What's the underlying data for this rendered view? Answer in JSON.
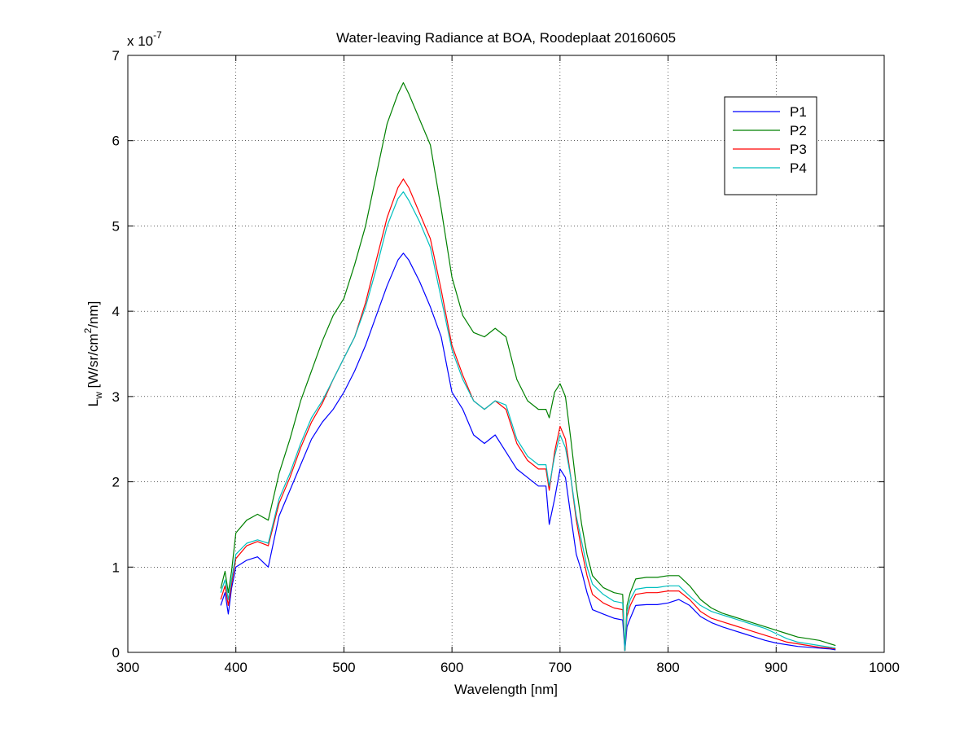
{
  "chart_data": {
    "type": "line",
    "title": "Water-leaving Radiance at BOA, Roodeplaat 20160605",
    "xlabel": "Wavelength [nm]",
    "ylabel": {
      "main": "L",
      "sub": "w",
      "unit_pre": " [W/sr/cm",
      "unit_sup": "2",
      "unit_post": "/nm]"
    },
    "y_multiplier": {
      "base": "x 10",
      "exponent": "-7"
    },
    "xlim": [
      300,
      1000
    ],
    "ylim": [
      0,
      7
    ],
    "xticks": [
      300,
      400,
      500,
      600,
      700,
      800,
      900,
      1000
    ],
    "yticks": [
      0,
      1,
      2,
      3,
      4,
      5,
      6,
      7
    ],
    "grid": true,
    "legend_position": "top-right",
    "series": [
      {
        "name": "P1",
        "color": "#0000ff",
        "x": [
          386,
          390,
          393,
          396,
          400,
          410,
          420,
          430,
          440,
          450,
          460,
          470,
          480,
          490,
          500,
          510,
          520,
          530,
          540,
          550,
          555,
          560,
          570,
          580,
          590,
          600,
          610,
          620,
          630,
          640,
          650,
          660,
          670,
          680,
          687,
          690,
          695,
          700,
          705,
          710,
          715,
          720,
          725,
          730,
          740,
          750,
          758,
          760,
          762,
          765,
          770,
          780,
          790,
          800,
          810,
          820,
          830,
          840,
          850,
          860,
          870,
          880,
          890,
          900,
          910,
          920,
          930,
          940,
          950,
          955
        ],
        "y": [
          0.55,
          0.7,
          0.45,
          0.75,
          1.0,
          1.08,
          1.12,
          1.0,
          1.6,
          1.9,
          2.2,
          2.5,
          2.7,
          2.85,
          3.05,
          3.3,
          3.6,
          3.95,
          4.3,
          4.6,
          4.68,
          4.6,
          4.35,
          4.05,
          3.7,
          3.05,
          2.85,
          2.55,
          2.45,
          2.55,
          2.35,
          2.15,
          2.05,
          1.95,
          1.95,
          1.5,
          1.8,
          2.15,
          2.05,
          1.6,
          1.15,
          0.95,
          0.7,
          0.5,
          0.45,
          0.4,
          0.38,
          0.02,
          0.3,
          0.4,
          0.55,
          0.56,
          0.56,
          0.58,
          0.62,
          0.55,
          0.42,
          0.35,
          0.3,
          0.26,
          0.22,
          0.18,
          0.14,
          0.11,
          0.09,
          0.07,
          0.06,
          0.05,
          0.04,
          0.03
        ]
      },
      {
        "name": "P2",
        "color": "#008000",
        "x": [
          386,
          390,
          393,
          396,
          400,
          410,
          420,
          430,
          440,
          450,
          460,
          470,
          480,
          490,
          500,
          510,
          520,
          530,
          540,
          550,
          555,
          560,
          570,
          580,
          590,
          600,
          610,
          620,
          630,
          640,
          650,
          660,
          670,
          680,
          687,
          690,
          695,
          700,
          705,
          710,
          715,
          720,
          725,
          730,
          740,
          750,
          758,
          760,
          762,
          765,
          770,
          780,
          790,
          800,
          810,
          820,
          830,
          840,
          850,
          860,
          870,
          880,
          890,
          900,
          910,
          920,
          930,
          940,
          950,
          955
        ],
        "y": [
          0.75,
          0.95,
          0.7,
          0.95,
          1.4,
          1.55,
          1.62,
          1.55,
          2.1,
          2.5,
          2.95,
          3.3,
          3.65,
          3.95,
          4.15,
          4.55,
          5.0,
          5.6,
          6.2,
          6.55,
          6.68,
          6.55,
          6.25,
          5.95,
          5.2,
          4.4,
          3.95,
          3.75,
          3.7,
          3.8,
          3.7,
          3.2,
          2.95,
          2.85,
          2.85,
          2.75,
          3.05,
          3.15,
          3.0,
          2.5,
          1.95,
          1.5,
          1.15,
          0.9,
          0.76,
          0.7,
          0.68,
          0.02,
          0.55,
          0.7,
          0.86,
          0.88,
          0.88,
          0.9,
          0.9,
          0.78,
          0.62,
          0.52,
          0.46,
          0.42,
          0.38,
          0.34,
          0.3,
          0.26,
          0.22,
          0.18,
          0.16,
          0.14,
          0.1,
          0.08
        ]
      },
      {
        "name": "P3",
        "color": "#ff0000",
        "x": [
          386,
          390,
          393,
          396,
          400,
          410,
          420,
          430,
          440,
          450,
          460,
          470,
          480,
          490,
          500,
          510,
          520,
          530,
          540,
          550,
          555,
          560,
          570,
          580,
          590,
          600,
          610,
          620,
          630,
          640,
          650,
          660,
          670,
          680,
          687,
          690,
          695,
          700,
          705,
          710,
          715,
          720,
          725,
          730,
          740,
          750,
          758,
          760,
          762,
          765,
          770,
          780,
          790,
          800,
          810,
          820,
          830,
          840,
          850,
          860,
          870,
          880,
          890,
          900,
          910,
          920,
          930,
          940,
          950,
          955
        ],
        "y": [
          0.62,
          0.78,
          0.55,
          0.8,
          1.1,
          1.25,
          1.3,
          1.25,
          1.75,
          2.05,
          2.4,
          2.7,
          2.92,
          3.2,
          3.45,
          3.7,
          4.1,
          4.6,
          5.1,
          5.45,
          5.55,
          5.45,
          5.15,
          4.85,
          4.25,
          3.6,
          3.25,
          2.95,
          2.85,
          2.95,
          2.85,
          2.45,
          2.25,
          2.15,
          2.15,
          1.9,
          2.35,
          2.65,
          2.5,
          2.05,
          1.55,
          1.2,
          0.9,
          0.68,
          0.58,
          0.52,
          0.5,
          0.02,
          0.42,
          0.55,
          0.68,
          0.7,
          0.7,
          0.72,
          0.72,
          0.62,
          0.48,
          0.4,
          0.36,
          0.32,
          0.28,
          0.24,
          0.2,
          0.16,
          0.12,
          0.1,
          0.08,
          0.06,
          0.05,
          0.04
        ]
      },
      {
        "name": "P4",
        "color": "#00bfbf",
        "x": [
          386,
          390,
          393,
          396,
          400,
          410,
          420,
          430,
          440,
          450,
          460,
          470,
          480,
          490,
          500,
          510,
          520,
          530,
          540,
          550,
          555,
          560,
          570,
          580,
          590,
          600,
          610,
          620,
          630,
          640,
          650,
          660,
          670,
          680,
          687,
          690,
          695,
          700,
          705,
          710,
          715,
          720,
          725,
          730,
          740,
          750,
          758,
          760,
          762,
          765,
          770,
          780,
          790,
          800,
          810,
          820,
          830,
          840,
          850,
          860,
          870,
          880,
          890,
          900,
          910,
          920,
          930,
          940,
          950,
          955
        ],
        "y": [
          0.7,
          0.85,
          0.62,
          0.85,
          1.15,
          1.28,
          1.32,
          1.28,
          1.8,
          2.1,
          2.45,
          2.75,
          2.95,
          3.2,
          3.45,
          3.7,
          4.05,
          4.5,
          5.0,
          5.32,
          5.4,
          5.3,
          5.05,
          4.75,
          4.15,
          3.55,
          3.2,
          2.95,
          2.85,
          2.95,
          2.9,
          2.5,
          2.3,
          2.2,
          2.2,
          1.95,
          2.3,
          2.55,
          2.4,
          2.05,
          1.6,
          1.3,
          1.0,
          0.8,
          0.68,
          0.6,
          0.58,
          0.02,
          0.48,
          0.62,
          0.74,
          0.76,
          0.76,
          0.78,
          0.78,
          0.66,
          0.55,
          0.48,
          0.44,
          0.4,
          0.36,
          0.32,
          0.28,
          0.22,
          0.16,
          0.12,
          0.1,
          0.08,
          0.06,
          0.05
        ]
      }
    ]
  }
}
